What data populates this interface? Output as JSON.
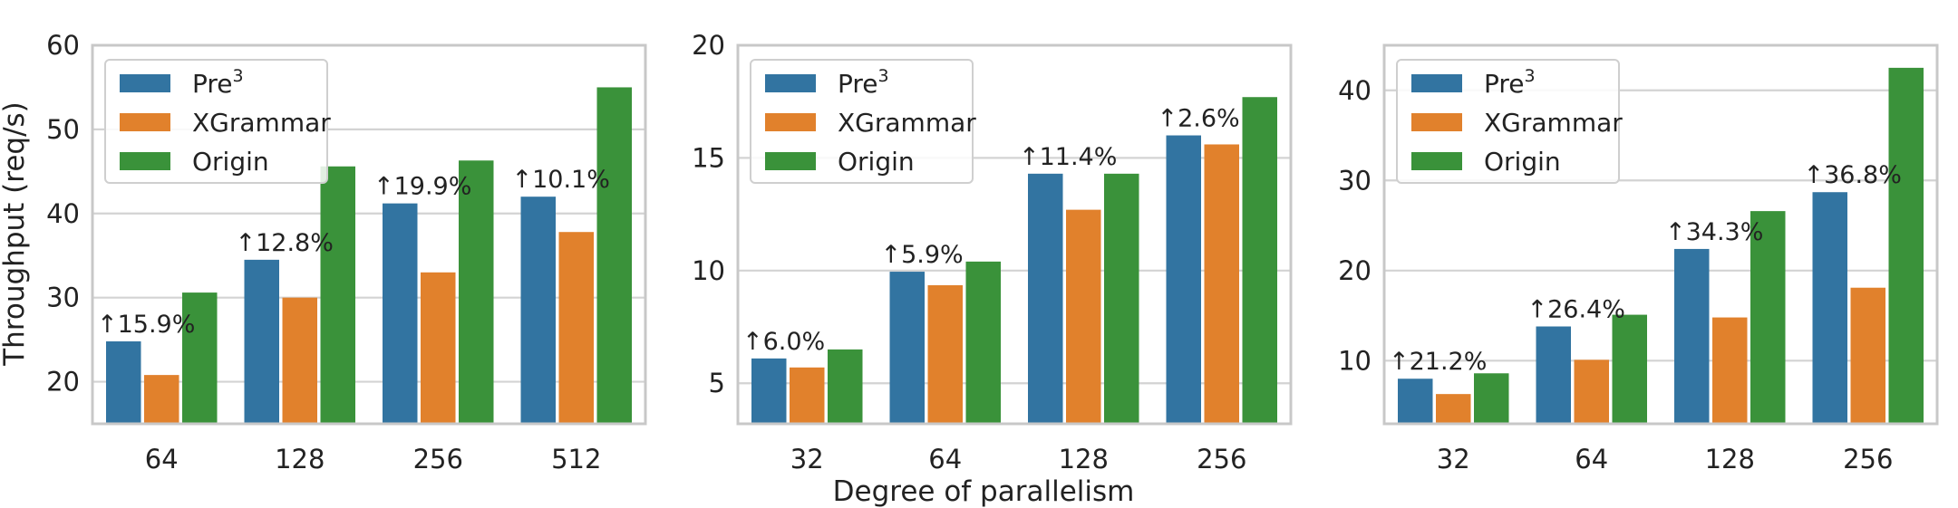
{
  "figure": {
    "ylabel": "Throughput (req/s)",
    "xlabel": "Degree of parallelism"
  },
  "legend": {
    "entries": [
      {
        "label": "Pre",
        "superscript": "3",
        "color": "#3274a1"
      },
      {
        "label": "XGrammar",
        "superscript": "",
        "color": "#e1812c"
      },
      {
        "label": "Origin",
        "superscript": "",
        "color": "#3a923a"
      }
    ],
    "placement": "top-left"
  },
  "chart_data": [
    {
      "type": "bar",
      "categories": [
        "64",
        "128",
        "256",
        "512"
      ],
      "series": [
        {
          "name": "Pre3",
          "values": [
            24.8,
            34.5,
            41.2,
            42.0
          ]
        },
        {
          "name": "XGrammar",
          "values": [
            20.8,
            30.0,
            33.0,
            37.8
          ]
        },
        {
          "name": "Origin",
          "values": [
            30.6,
            45.6,
            46.3,
            55.0
          ]
        }
      ],
      "annotations": [
        "↑15.9%",
        "↑12.8%",
        "↑19.9%",
        "↑10.1%"
      ],
      "ylim": [
        15,
        60
      ],
      "yticks": [
        20,
        30,
        40,
        50,
        60
      ],
      "ylabel": "Throughput (req/s)",
      "xlabel": "",
      "grid": "horizontal"
    },
    {
      "type": "bar",
      "categories": [
        "32",
        "64",
        "128",
        "256"
      ],
      "series": [
        {
          "name": "Pre3",
          "values": [
            6.1,
            9.95,
            14.3,
            16.0
          ]
        },
        {
          "name": "XGrammar",
          "values": [
            5.7,
            9.35,
            12.7,
            15.6
          ]
        },
        {
          "name": "Origin",
          "values": [
            6.5,
            10.4,
            14.3,
            17.7
          ]
        }
      ],
      "annotations": [
        "↑6.0%",
        "↑5.9%",
        "↑11.4%",
        "↑2.6%"
      ],
      "ylim": [
        3.2,
        20
      ],
      "yticks": [
        5,
        10,
        15,
        20
      ],
      "ylabel": "",
      "xlabel": "Degree of parallelism",
      "grid": "horizontal"
    },
    {
      "type": "bar",
      "categories": [
        "32",
        "64",
        "128",
        "256"
      ],
      "series": [
        {
          "name": "Pre3",
          "values": [
            8.0,
            13.8,
            22.4,
            28.7
          ]
        },
        {
          "name": "XGrammar",
          "values": [
            6.3,
            10.1,
            14.8,
            18.1
          ]
        },
        {
          "name": "Origin",
          "values": [
            8.6,
            15.1,
            26.6,
            42.5
          ]
        }
      ],
      "annotations": [
        "↑21.2%",
        "↑26.4%",
        "↑34.3%",
        "↑36.8%"
      ],
      "ylim": [
        3,
        45
      ],
      "yticks": [
        10,
        20,
        30,
        40
      ],
      "ylabel": "",
      "xlabel": "",
      "grid": "horizontal"
    }
  ]
}
